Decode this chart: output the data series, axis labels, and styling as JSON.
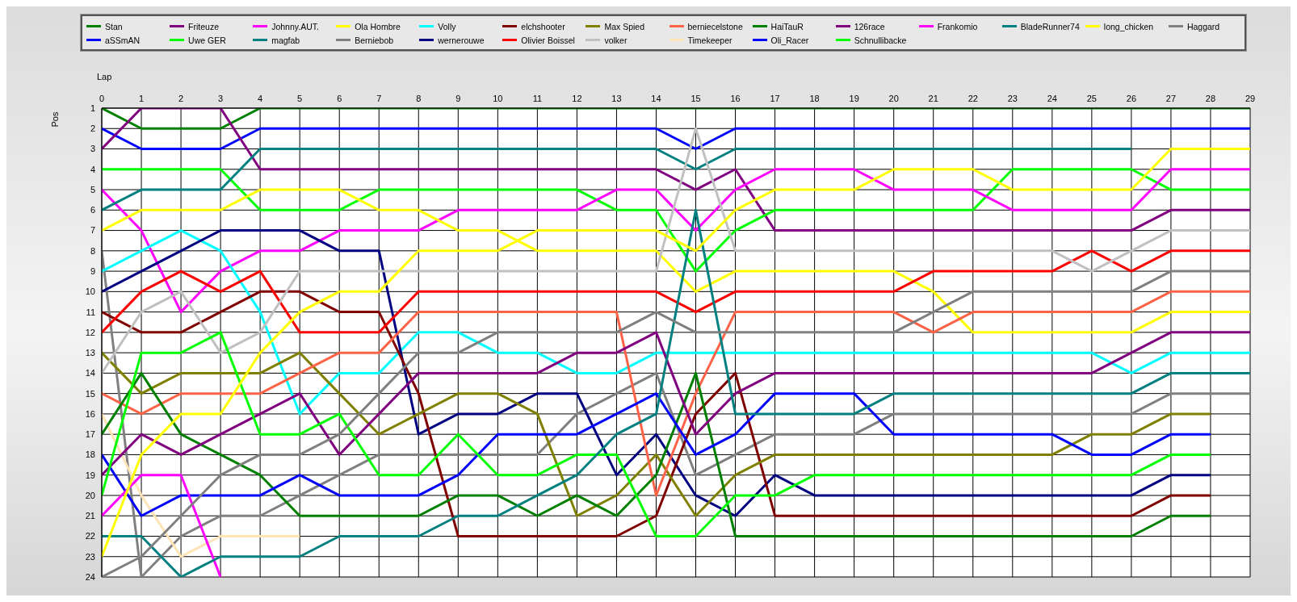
{
  "chart_data": {
    "type": "line",
    "xlabel": "Lap",
    "ylabel": "Pos",
    "x": [
      0,
      1,
      2,
      3,
      4,
      5,
      6,
      7,
      8,
      9,
      10,
      11,
      12,
      13,
      14,
      15,
      16,
      17,
      18,
      19,
      20,
      21,
      22,
      23,
      24,
      25,
      26,
      27,
      28,
      29
    ],
    "xlim": [
      0,
      29
    ],
    "xticks": [
      0,
      1,
      2,
      3,
      4,
      5,
      6,
      7,
      8,
      9,
      10,
      11,
      12,
      13,
      14,
      15,
      16,
      17,
      18,
      19,
      20,
      21,
      22,
      23,
      24,
      25,
      26,
      27,
      28,
      29
    ],
    "ylim": [
      24,
      1
    ],
    "yticks": [
      1,
      2,
      3,
      4,
      5,
      6,
      7,
      8,
      9,
      10,
      11,
      12,
      13,
      14,
      15,
      16,
      17,
      18,
      19,
      20,
      21,
      22,
      23,
      24
    ],
    "grid": true,
    "legend": "top",
    "series": [
      {
        "name": "Stan",
        "color": "#008000",
        "values": [
          1,
          2,
          2,
          2,
          1,
          1,
          1,
          1,
          1,
          1,
          1,
          1,
          1,
          1,
          1,
          1,
          1,
          1,
          1,
          1,
          1,
          1,
          1,
          1,
          1,
          1,
          1,
          1,
          1,
          1
        ]
      },
      {
        "name": "aSSmAN",
        "color": "#0000ff",
        "values": [
          2,
          3,
          3,
          3,
          2,
          2,
          2,
          2,
          2,
          2,
          2,
          2,
          2,
          2,
          2,
          3,
          2,
          2,
          2,
          2,
          2,
          2,
          2,
          2,
          2,
          2,
          2,
          2,
          2,
          2
        ]
      },
      {
        "name": "Friteuze",
        "color": "#800080",
        "values": [
          3,
          1,
          1,
          1,
          4,
          4,
          4,
          4,
          4,
          4,
          4,
          4,
          4,
          4,
          4,
          5,
          4,
          7,
          7,
          7,
          7,
          7,
          7,
          7,
          7,
          7,
          7,
          6,
          6,
          6
        ]
      },
      {
        "name": "Uwe GER",
        "color": "#00ff00",
        "values": [
          4,
          4,
          4,
          4,
          6,
          6,
          6,
          5,
          5,
          5,
          5,
          5,
          5,
          6,
          6,
          9,
          7,
          6,
          6,
          6,
          6,
          6,
          6,
          4,
          4,
          4,
          4,
          5,
          5,
          5
        ]
      },
      {
        "name": "Johnny.AUT.",
        "color": "#ff00ff",
        "values": [
          5,
          7,
          11,
          9,
          8,
          8,
          7,
          7,
          7,
          6,
          6,
          6,
          6,
          5,
          5,
          7,
          5,
          4,
          4,
          4,
          5,
          5,
          5,
          6,
          6,
          6,
          6,
          4,
          4,
          4
        ]
      },
      {
        "name": "magfab",
        "color": "#008080",
        "values": [
          6,
          5,
          5,
          5,
          3,
          3,
          3,
          3,
          3,
          3,
          3,
          3,
          3,
          3,
          3,
          4,
          3,
          3,
          3,
          3,
          3,
          3,
          3,
          3,
          3,
          3,
          3,
          null,
          null,
          null
        ]
      },
      {
        "name": "Ola Hombre",
        "color": "#ffff00",
        "values": [
          7,
          6,
          6,
          6,
          5,
          5,
          5,
          6,
          6,
          7,
          7,
          8,
          8,
          8,
          8,
          10,
          9,
          9,
          9,
          9,
          9,
          10,
          12,
          12,
          12,
          12,
          12,
          11,
          11,
          11
        ]
      },
      {
        "name": "Berniebob",
        "color": "#808080",
        "values": [
          8,
          24,
          22,
          21,
          21,
          20,
          19,
          18,
          18,
          18,
          18,
          18,
          16,
          15,
          14,
          19,
          18,
          17,
          17,
          17,
          16,
          16,
          16,
          16,
          16,
          16,
          16,
          15,
          15,
          15
        ]
      },
      {
        "name": "Volly",
        "color": "#00ffff",
        "values": [
          9,
          8,
          7,
          8,
          11,
          16,
          14,
          14,
          12,
          12,
          13,
          13,
          14,
          14,
          13,
          13,
          13,
          13,
          13,
          13,
          13,
          13,
          13,
          13,
          13,
          13,
          14,
          13,
          13,
          13
        ]
      },
      {
        "name": "wernerouwe",
        "color": "#000080",
        "values": [
          10,
          9,
          8,
          7,
          7,
          7,
          8,
          8,
          17,
          16,
          16,
          15,
          15,
          19,
          17,
          20,
          21,
          19,
          20,
          20,
          20,
          20,
          20,
          20,
          20,
          20,
          20,
          19,
          19,
          null
        ]
      },
      {
        "name": "elchshooter",
        "color": "#800000",
        "values": [
          11,
          12,
          12,
          11,
          10,
          10,
          11,
          11,
          15,
          22,
          22,
          22,
          22,
          22,
          21,
          16,
          14,
          21,
          21,
          21,
          21,
          21,
          21,
          21,
          21,
          21,
          21,
          20,
          20,
          null
        ]
      },
      {
        "name": "Olivier Boissel",
        "color": "#ff0000",
        "values": [
          12,
          10,
          9,
          10,
          9,
          12,
          12,
          12,
          10,
          10,
          10,
          10,
          10,
          10,
          10,
          11,
          10,
          10,
          10,
          10,
          10,
          9,
          9,
          9,
          9,
          8,
          9,
          8,
          8,
          8
        ]
      },
      {
        "name": "Max Spied",
        "color": "#808000",
        "values": [
          13,
          15,
          14,
          14,
          14,
          13,
          15,
          17,
          16,
          15,
          15,
          16,
          21,
          20,
          18,
          21,
          19,
          18,
          18,
          18,
          18,
          18,
          18,
          18,
          18,
          17,
          17,
          16,
          16,
          null
        ]
      },
      {
        "name": "volker",
        "color": "#c0c0c0",
        "values": [
          14,
          11,
          10,
          13,
          12,
          9,
          9,
          9,
          9,
          9,
          9,
          9,
          9,
          9,
          9,
          2,
          8,
          8,
          8,
          8,
          8,
          8,
          8,
          8,
          8,
          9,
          8,
          7,
          7,
          7
        ]
      },
      {
        "name": "berniecelstone",
        "color": "#ff6347",
        "values": [
          15,
          16,
          15,
          15,
          15,
          14,
          13,
          13,
          11,
          11,
          11,
          11,
          11,
          11,
          20,
          15,
          11,
          11,
          11,
          11,
          11,
          12,
          11,
          11,
          11,
          11,
          11,
          10,
          10,
          10
        ]
      },
      {
        "name": "Timekeeper",
        "color": "#ffe4b5",
        "values": [
          16,
          20,
          23,
          22,
          22,
          22,
          null,
          null,
          null,
          null,
          null,
          null,
          null,
          null,
          null,
          null,
          null,
          null,
          null,
          null,
          null,
          null,
          null,
          null,
          null,
          null,
          null,
          null,
          null,
          null
        ]
      },
      {
        "name": "HaiTauR",
        "color": "#008000",
        "values": [
          17,
          14,
          17,
          18,
          19,
          21,
          21,
          21,
          21,
          20,
          20,
          21,
          20,
          21,
          19,
          14,
          22,
          22,
          22,
          22,
          22,
          22,
          22,
          22,
          22,
          22,
          22,
          21,
          21,
          null
        ]
      },
      {
        "name": "Oli_Racer",
        "color": "#0000ff",
        "values": [
          18,
          21,
          20,
          20,
          20,
          19,
          20,
          20,
          20,
          19,
          17,
          17,
          17,
          16,
          15,
          18,
          17,
          15,
          15,
          15,
          17,
          17,
          17,
          17,
          17,
          18,
          18,
          17,
          17,
          null
        ]
      },
      {
        "name": "126race",
        "color": "#800080",
        "values": [
          19,
          17,
          18,
          17,
          16,
          15,
          18,
          16,
          14,
          14,
          14,
          14,
          13,
          13,
          12,
          17,
          15,
          14,
          14,
          14,
          14,
          14,
          14,
          14,
          14,
          14,
          13,
          12,
          12,
          12
        ]
      },
      {
        "name": "Schnullibacke",
        "color": "#00ff00",
        "values": [
          20,
          13,
          13,
          12,
          17,
          17,
          16,
          19,
          19,
          17,
          19,
          19,
          18,
          18,
          22,
          22,
          20,
          20,
          19,
          19,
          19,
          19,
          19,
          19,
          19,
          19,
          19,
          18,
          18,
          null
        ]
      },
      {
        "name": "Frankomio",
        "color": "#ff00ff",
        "values": [
          21,
          19,
          19,
          24,
          null,
          null,
          null,
          null,
          null,
          null,
          null,
          null,
          null,
          null,
          null,
          null,
          null,
          null,
          null,
          null,
          null,
          null,
          null,
          null,
          null,
          null,
          null,
          null,
          null,
          null
        ]
      },
      {
        "name": "BladeRunner74",
        "color": "#008080",
        "values": [
          22,
          22,
          24,
          23,
          23,
          23,
          22,
          22,
          22,
          21,
          21,
          20,
          19,
          17,
          16,
          6,
          16,
          16,
          16,
          16,
          15,
          15,
          15,
          15,
          15,
          15,
          15,
          14,
          14,
          14
        ]
      },
      {
        "name": "long_chicken",
        "color": "#ffff00",
        "values": [
          23,
          18,
          16,
          16,
          13,
          11,
          10,
          10,
          8,
          8,
          8,
          7,
          7,
          7,
          7,
          8,
          6,
          5,
          5,
          5,
          4,
          4,
          4,
          5,
          5,
          5,
          5,
          3,
          3,
          3
        ]
      },
      {
        "name": "Haggard",
        "color": "#808080",
        "values": [
          24,
          23,
          21,
          19,
          18,
          18,
          17,
          15,
          13,
          13,
          12,
          12,
          12,
          12,
          11,
          12,
          12,
          12,
          12,
          12,
          12,
          11,
          10,
          10,
          10,
          10,
          10,
          9,
          9,
          9
        ]
      }
    ]
  }
}
